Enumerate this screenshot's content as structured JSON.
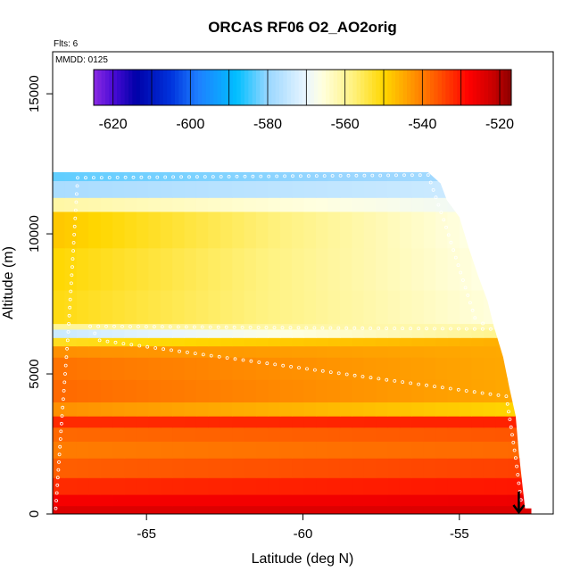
{
  "chart_data": {
    "type": "heatmap",
    "title": "ORCAS RF06 O2_AO2orig",
    "xlabel": "Latitude (deg N)",
    "ylabel": "Altitude (m)",
    "annotations": {
      "flights": "Flts: 6",
      "date": "MMDD: 0125"
    },
    "xlim": [
      -68,
      -52
    ],
    "ylim": [
      0,
      16500
    ],
    "x_ticks": [
      -65,
      -60,
      -55
    ],
    "x_tick_labels": [
      "-65",
      "-60",
      "-55"
    ],
    "y_ticks": [
      0,
      5000,
      10000,
      15000
    ],
    "y_tick_labels": [
      "0",
      "5000",
      "10000",
      "15000"
    ],
    "colorbar": {
      "range": [
        -625,
        -517
      ],
      "ticks": [
        -620,
        -600,
        -580,
        -560,
        -540,
        -520
      ],
      "tick_labels": [
        "-620",
        "-600",
        "-580",
        "-560",
        "-540",
        "-520"
      ],
      "stops": [
        {
          "value": -625,
          "color": "#8a2be2"
        },
        {
          "value": -620,
          "color": "#4b0bd6"
        },
        {
          "value": -614,
          "color": "#0000a8"
        },
        {
          "value": -605,
          "color": "#0033dd"
        },
        {
          "value": -598,
          "color": "#1e7fff"
        },
        {
          "value": -588,
          "color": "#00bfff"
        },
        {
          "value": -580,
          "color": "#99d6ff"
        },
        {
          "value": -570,
          "color": "#eaf6ff"
        },
        {
          "value": -566,
          "color": "#ffffe0"
        },
        {
          "value": -558,
          "color": "#fff280"
        },
        {
          "value": -550,
          "color": "#ffd700"
        },
        {
          "value": -543,
          "color": "#ff9900"
        },
        {
          "value": -536,
          "color": "#ff5500"
        },
        {
          "value": -528,
          "color": "#ff0000"
        },
        {
          "value": -522,
          "color": "#cc0000"
        },
        {
          "value": -517,
          "color": "#8b0000"
        }
      ]
    },
    "curtain": {
      "top_edge": [
        {
          "lat": -68.0,
          "alt": 12200
        },
        {
          "lat": -56.0,
          "alt": 12200
        },
        {
          "lat": -55.6,
          "alt": 11800
        },
        {
          "lat": -55.4,
          "alt": 11200
        },
        {
          "lat": -55.0,
          "alt": 10600
        },
        {
          "lat": -54.7,
          "alt": 9500
        },
        {
          "lat": -54.4,
          "alt": 8500
        },
        {
          "lat": -54.1,
          "alt": 7600
        },
        {
          "lat": -53.9,
          "alt": 6700
        },
        {
          "lat": -53.6,
          "alt": 5600
        },
        {
          "lat": -53.4,
          "alt": 4500
        },
        {
          "lat": -53.2,
          "alt": 3500
        },
        {
          "lat": -53.1,
          "alt": 2200
        },
        {
          "lat": -52.9,
          "alt": 200
        },
        {
          "lat": -52.7,
          "alt": 200
        },
        {
          "lat": -52.7,
          "alt": 0
        }
      ],
      "bands": [
        {
          "alt_lo": 0,
          "alt_hi": 300,
          "values": [
            -524,
            -524
          ]
        },
        {
          "alt_lo": 300,
          "alt_hi": 700,
          "values": [
            -527,
            -526
          ]
        },
        {
          "alt_lo": 700,
          "alt_hi": 1300,
          "values": [
            -532,
            -530
          ]
        },
        {
          "alt_lo": 1300,
          "alt_hi": 2000,
          "values": [
            -537,
            -534
          ]
        },
        {
          "alt_lo": 2000,
          "alt_hi": 2600,
          "values": [
            -540,
            -538
          ]
        },
        {
          "alt_lo": 2600,
          "alt_hi": 3100,
          "values": [
            -538,
            -536
          ]
        },
        {
          "alt_lo": 3100,
          "alt_hi": 3500,
          "values": [
            -532,
            -531
          ]
        },
        {
          "alt_lo": 3500,
          "alt_hi": 4000,
          "values": [
            -542,
            -550
          ]
        },
        {
          "alt_lo": 4000,
          "alt_hi": 4800,
          "values": [
            -538,
            -545
          ]
        },
        {
          "alt_lo": 4800,
          "alt_hi": 5600,
          "values": [
            -539,
            -545
          ]
        },
        {
          "alt_lo": 5600,
          "alt_hi": 6000,
          "values": [
            -542,
            -545
          ]
        },
        {
          "alt_lo": 6000,
          "alt_hi": 6300,
          "values": [
            -552,
            -545
          ]
        },
        {
          "alt_lo": 6300,
          "alt_hi": 6600,
          "values": [
            -574,
            -558
          ]
        },
        {
          "alt_lo": 6600,
          "alt_hi": 6800,
          "values": [
            -560,
            -562
          ]
        },
        {
          "alt_lo": 6800,
          "alt_hi": 8000,
          "values": [
            -551,
            -567
          ]
        },
        {
          "alt_lo": 8000,
          "alt_hi": 9500,
          "values": [
            -550,
            -568
          ]
        },
        {
          "alt_lo": 9500,
          "alt_hi": 10800,
          "values": [
            -548,
            -569
          ]
        },
        {
          "alt_lo": 10800,
          "alt_hi": 11300,
          "values": [
            -561,
            -570
          ]
        },
        {
          "alt_lo": 11300,
          "alt_hi": 11900,
          "values": [
            -578,
            -573
          ]
        },
        {
          "alt_lo": 11900,
          "alt_hi": 12200,
          "values": [
            -583,
            -578
          ]
        }
      ],
      "flight_track": [
        {
          "lat": -67.9,
          "alt": 200
        },
        {
          "lat": -67.7,
          "alt": 3500
        },
        {
          "lat": -67.5,
          "alt": 6500
        },
        {
          "lat": -67.2,
          "alt": 12000
        },
        {
          "lat": -56.0,
          "alt": 12100
        },
        {
          "lat": -55.5,
          "alt": 10500
        },
        {
          "lat": -54.5,
          "alt": 7000
        },
        {
          "lat": -54.0,
          "alt": 6600
        },
        {
          "lat": -66.8,
          "alt": 6700
        },
        {
          "lat": -66.5,
          "alt": 6200
        },
        {
          "lat": -53.5,
          "alt": 4200
        },
        {
          "lat": -53.2,
          "alt": 2000
        },
        {
          "lat": -53.0,
          "alt": 200
        }
      ],
      "arrow": {
        "lat": -53.1,
        "alt_start": 800,
        "alt_end": 0
      }
    }
  }
}
